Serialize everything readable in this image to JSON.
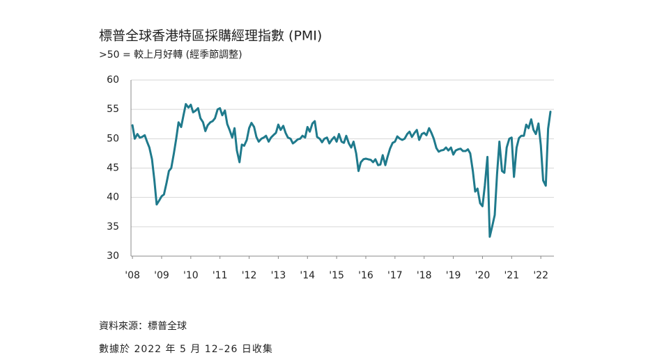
{
  "chart_data": {
    "type": "line",
    "title": "標普全球香港特區採購經理指數 (PMI)",
    "subtitle": ">50 = 較上月好轉 (經季節調整)",
    "source": "資料來源：標普全球",
    "note": "數據於 2022 年 5 月 12–26 日收集",
    "color": "#1f7a8c",
    "grid": true,
    "xlim": [
      2007.95,
      2022.45
    ],
    "xticks": [
      {
        "value": 2008,
        "label": "'08"
      },
      {
        "value": 2009,
        "label": "'09"
      },
      {
        "value": 2010,
        "label": "'10"
      },
      {
        "value": 2011,
        "label": "'11"
      },
      {
        "value": 2012,
        "label": "'12"
      },
      {
        "value": 2013,
        "label": "'13"
      },
      {
        "value": 2014,
        "label": "'14"
      },
      {
        "value": 2015,
        "label": "'15"
      },
      {
        "value": 2016,
        "label": "'16"
      },
      {
        "value": 2017,
        "label": "'17"
      },
      {
        "value": 2018,
        "label": "'18"
      },
      {
        "value": 2019,
        "label": "'19"
      },
      {
        "value": 2020,
        "label": "'20"
      },
      {
        "value": 2021,
        "label": "'21"
      },
      {
        "value": 2022,
        "label": "'22"
      }
    ],
    "ylim": [
      30,
      60
    ],
    "yticks": [
      30,
      35,
      40,
      45,
      50,
      55,
      60
    ],
    "x": [
      2008.0,
      2008.08,
      2008.17,
      2008.25,
      2008.33,
      2008.42,
      2008.5,
      2008.58,
      2008.67,
      2008.75,
      2008.83,
      2008.92,
      2009.0,
      2009.08,
      2009.17,
      2009.25,
      2009.33,
      2009.42,
      2009.5,
      2009.58,
      2009.67,
      2009.75,
      2009.83,
      2009.92,
      2010.0,
      2010.08,
      2010.17,
      2010.25,
      2010.33,
      2010.42,
      2010.5,
      2010.58,
      2010.67,
      2010.75,
      2010.83,
      2010.92,
      2011.0,
      2011.08,
      2011.17,
      2011.25,
      2011.33,
      2011.42,
      2011.5,
      2011.58,
      2011.67,
      2011.75,
      2011.83,
      2011.92,
      2012.0,
      2012.08,
      2012.17,
      2012.25,
      2012.33,
      2012.42,
      2012.5,
      2012.58,
      2012.67,
      2012.75,
      2012.83,
      2012.92,
      2013.0,
      2013.08,
      2013.17,
      2013.25,
      2013.33,
      2013.42,
      2013.5,
      2013.58,
      2013.67,
      2013.75,
      2013.83,
      2013.92,
      2014.0,
      2014.08,
      2014.17,
      2014.25,
      2014.33,
      2014.42,
      2014.5,
      2014.58,
      2014.67,
      2014.75,
      2014.83,
      2014.92,
      2015.0,
      2015.08,
      2015.17,
      2015.25,
      2015.33,
      2015.42,
      2015.5,
      2015.58,
      2015.67,
      2015.75,
      2015.83,
      2015.92,
      2016.0,
      2016.08,
      2016.17,
      2016.25,
      2016.33,
      2016.42,
      2016.5,
      2016.58,
      2016.67,
      2016.75,
      2016.83,
      2016.92,
      2017.0,
      2017.08,
      2017.17,
      2017.25,
      2017.33,
      2017.42,
      2017.5,
      2017.58,
      2017.67,
      2017.75,
      2017.83,
      2017.92,
      2018.0,
      2018.08,
      2018.17,
      2018.25,
      2018.33,
      2018.42,
      2018.5,
      2018.58,
      2018.67,
      2018.75,
      2018.83,
      2018.92,
      2019.0,
      2019.08,
      2019.17,
      2019.25,
      2019.33,
      2019.42,
      2019.5,
      2019.58,
      2019.67,
      2019.75,
      2019.83,
      2019.92,
      2020.0,
      2020.08,
      2020.17,
      2020.25,
      2020.33,
      2020.42,
      2020.5,
      2020.58,
      2020.67,
      2020.75,
      2020.83,
      2020.92,
      2021.0,
      2021.08,
      2021.17,
      2021.25,
      2021.33,
      2021.42,
      2021.5,
      2021.58,
      2021.67,
      2021.75,
      2021.83,
      2021.92,
      2022.0,
      2022.08,
      2022.17,
      2022.25,
      2022.33
    ],
    "values": [
      52.3,
      50.0,
      50.8,
      50.2,
      50.3,
      50.6,
      49.5,
      48.5,
      46.5,
      43.0,
      38.8,
      39.5,
      40.2,
      40.5,
      42.5,
      44.5,
      45.0,
      47.5,
      50.0,
      52.8,
      52.0,
      54.0,
      55.9,
      55.3,
      55.8,
      54.5,
      54.8,
      55.2,
      53.5,
      52.8,
      51.3,
      52.3,
      52.8,
      53.0,
      53.5,
      55.0,
      55.2,
      54.0,
      54.8,
      52.5,
      51.5,
      50.2,
      51.8,
      48.0,
      46.0,
      49.0,
      48.8,
      49.8,
      51.8,
      52.7,
      52.0,
      50.3,
      49.5,
      50.0,
      50.2,
      50.5,
      49.5,
      50.2,
      50.6,
      51.0,
      52.4,
      51.5,
      52.2,
      51.0,
      50.2,
      50.0,
      49.2,
      49.5,
      49.9,
      50.0,
      50.5,
      50.2,
      52.0,
      51.2,
      52.6,
      53.0,
      50.3,
      50.0,
      49.4,
      50.0,
      50.2,
      49.2,
      49.8,
      50.3,
      49.5,
      50.8,
      49.5,
      49.3,
      50.5,
      49.2,
      48.5,
      49.5,
      47.5,
      44.5,
      46.0,
      46.5,
      46.6,
      46.5,
      46.4,
      46.0,
      46.5,
      45.5,
      45.6,
      47.2,
      45.5,
      47.0,
      48.3,
      49.3,
      49.5,
      50.4,
      50.0,
      49.8,
      50.0,
      50.8,
      51.2,
      50.3,
      51.0,
      51.5,
      49.8,
      50.8,
      51.0,
      50.6,
      51.8,
      51.0,
      50.0,
      48.4,
      47.8,
      48.0,
      48.1,
      48.5,
      48.0,
      48.5,
      47.3,
      48.0,
      48.2,
      48.3,
      47.9,
      47.9,
      48.2,
      47.5,
      44.5,
      41.0,
      41.5,
      39.0,
      38.5,
      42.0,
      46.9,
      33.3,
      35.0,
      37.0,
      44.0,
      49.5,
      44.5,
      44.2,
      48.5,
      50.0,
      50.2,
      43.5,
      48.5,
      50.1,
      50.5,
      50.5,
      52.4,
      51.8,
      53.3,
      51.5,
      50.8,
      52.6,
      48.9,
      42.9,
      42.0,
      51.7,
      54.6
    ]
  }
}
